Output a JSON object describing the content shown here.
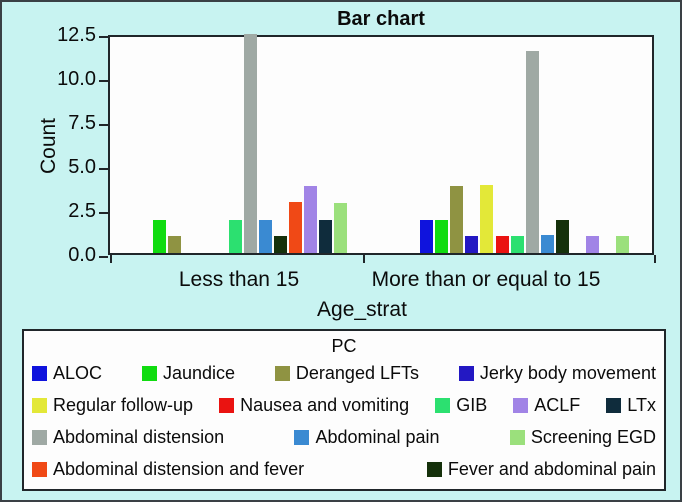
{
  "frame": {
    "background_color": "#c8f3f1",
    "border_color": "#3a4045"
  },
  "chart_data": {
    "type": "bar",
    "title": "Bar chart",
    "xlabel": "Age_strat",
    "ylabel": "Count",
    "categories": [
      "Less than 15",
      "More than or equal to 15"
    ],
    "ytick_labels": [
      "0.0",
      "2.5",
      "5.0",
      "7.5",
      "10.0",
      "12.5"
    ],
    "ylim": [
      0,
      12.5
    ],
    "grid": false,
    "legend_position": "bottom",
    "legend_title": "PC",
    "series": [
      {
        "name": "ALOC",
        "color": "#0f13dd",
        "values": [
          0,
          1.9
        ]
      },
      {
        "name": "Jaundice",
        "color": "#10dc10",
        "values": [
          1.9,
          1.9
        ]
      },
      {
        "name": "Deranged LFTs",
        "color": "#8f9342",
        "values": [
          0.95,
          3.8
        ]
      },
      {
        "name": "Jerky body movement",
        "color": "#2318c3",
        "values": [
          0,
          0.95
        ]
      },
      {
        "name": "Regular follow-up",
        "color": "#e3e838",
        "values": [
          0,
          3.85
        ]
      },
      {
        "name": "Nausea and vomiting",
        "color": "#ea1311",
        "values": [
          0,
          0.95
        ]
      },
      {
        "name": "GIB",
        "color": "#2ce070",
        "values": [
          1.9,
          0.95
        ]
      },
      {
        "name": "Abdominal distension",
        "color": "#9fa9a4",
        "values": [
          12.45,
          11.5
        ]
      },
      {
        "name": "Abdominal pain",
        "color": "#3a8ad2",
        "values": [
          1.9,
          1.0
        ]
      },
      {
        "name": "Fever and abdominal pain",
        "color": "#15310b",
        "values": [
          0.95,
          1.9
        ]
      },
      {
        "name": "Abdominal distension and fever",
        "color": "#f04916",
        "values": [
          2.9,
          0
        ]
      },
      {
        "name": "ACLF",
        "color": "#a184e6",
        "values": [
          3.8,
          0.95
        ]
      },
      {
        "name": "LTx",
        "color": "#0f2c3c",
        "values": [
          1.9,
          0
        ]
      },
      {
        "name": "Screening EGD",
        "color": "#9be07c",
        "values": [
          2.85,
          0.95
        ]
      }
    ],
    "legend_rows": [
      [
        0,
        1,
        2,
        3
      ],
      [
        4,
        5,
        6,
        11,
        12
      ],
      [
        7,
        8,
        13
      ],
      [
        10,
        9
      ]
    ]
  }
}
